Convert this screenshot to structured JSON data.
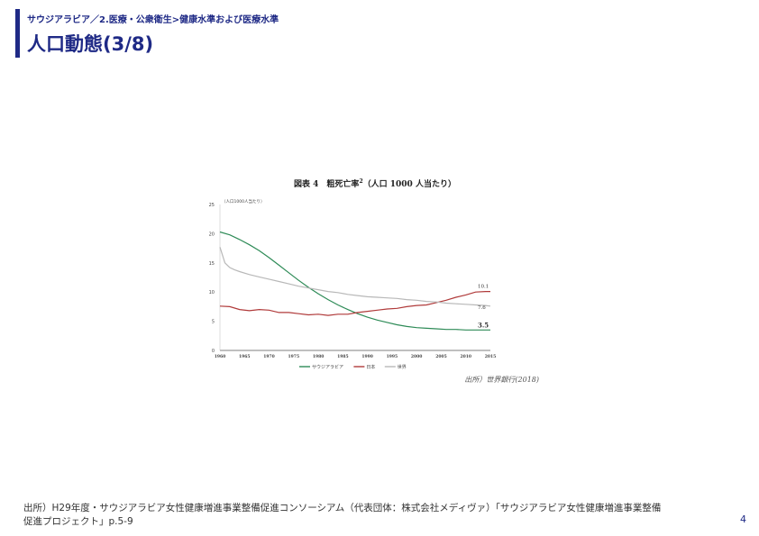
{
  "header": {
    "breadcrumb": "サウジアラビア／2.医療・公衆衛生>健康水準および医療水準",
    "title": "人口動態(3/8)"
  },
  "figure": {
    "title_prefix": "図表 4　粗死亡率",
    "title_sup": "2",
    "title_suffix": "（人口 1000 人当たり）",
    "source": "出所）世界銀行(2018)"
  },
  "chart_data": {
    "type": "line",
    "title": "粗死亡率（人口1000人当たり）",
    "ylabel": "（人口1000人当たり）",
    "xlabel": "",
    "xlim": [
      1960,
      2015
    ],
    "ylim": [
      0,
      25
    ],
    "x_ticks": [
      1960,
      1965,
      1970,
      1975,
      1980,
      1985,
      1990,
      1995,
      2000,
      2005,
      2010,
      2015
    ],
    "y_ticks": [
      0,
      5,
      10,
      15,
      20,
      25
    ],
    "legend_position": "bottom",
    "series": [
      {
        "name": "サウジアラビア",
        "color": "#2e8b57",
        "x": [
          1960,
          1962,
          1964,
          1966,
          1968,
          1970,
          1972,
          1974,
          1976,
          1978,
          1980,
          1982,
          1984,
          1986,
          1988,
          1990,
          1992,
          1994,
          1996,
          1998,
          2000,
          2002,
          2004,
          2006,
          2008,
          2010,
          2012,
          2014,
          2015
        ],
        "values": [
          20.3,
          19.8,
          19.0,
          18.1,
          17.1,
          15.9,
          14.6,
          13.3,
          12.0,
          10.8,
          9.7,
          8.7,
          7.8,
          7.0,
          6.3,
          5.7,
          5.2,
          4.8,
          4.4,
          4.1,
          3.9,
          3.8,
          3.7,
          3.6,
          3.6,
          3.5,
          3.5,
          3.5,
          3.5
        ],
        "end_label": "3.5"
      },
      {
        "name": "日本",
        "color": "#b03a3a",
        "x": [
          1960,
          1962,
          1964,
          1966,
          1968,
          1970,
          1972,
          1974,
          1976,
          1978,
          1980,
          1982,
          1984,
          1986,
          1988,
          1990,
          1992,
          1994,
          1996,
          1998,
          2000,
          2002,
          2004,
          2006,
          2008,
          2010,
          2012,
          2014,
          2015
        ],
        "values": [
          7.6,
          7.5,
          7.0,
          6.8,
          7.0,
          6.9,
          6.5,
          6.5,
          6.3,
          6.1,
          6.2,
          6.0,
          6.2,
          6.2,
          6.5,
          6.7,
          6.9,
          7.1,
          7.2,
          7.5,
          7.7,
          7.8,
          8.2,
          8.6,
          9.1,
          9.5,
          10.0,
          10.1,
          10.1
        ],
        "end_label": "10.1"
      },
      {
        "name": "世界",
        "color": "#b8b8b8",
        "x": [
          1960,
          1961,
          1962,
          1963,
          1964,
          1966,
          1968,
          1970,
          1972,
          1974,
          1976,
          1978,
          1980,
          1982,
          1984,
          1986,
          1988,
          1990,
          1992,
          1994,
          1996,
          1998,
          2000,
          2002,
          2004,
          2006,
          2008,
          2010,
          2012,
          2014,
          2015
        ],
        "values": [
          17.7,
          15.0,
          14.2,
          13.8,
          13.5,
          13.0,
          12.6,
          12.2,
          11.8,
          11.4,
          11.0,
          10.7,
          10.4,
          10.1,
          9.9,
          9.6,
          9.4,
          9.2,
          9.1,
          9.0,
          8.9,
          8.7,
          8.6,
          8.4,
          8.3,
          8.1,
          8.0,
          7.9,
          7.8,
          7.7,
          7.6
        ],
        "end_label": "7.6"
      }
    ]
  },
  "footer": {
    "source_line1": "出所）H29年度・サウジアラビア女性健康増進事業整備促進コンソーシアム（代表団体：株式会社メディヴァ）「サウジアラビア女性健康増進事業整備",
    "source_line2": "促進プロジェクト」p.5-9",
    "page_number": "4"
  }
}
